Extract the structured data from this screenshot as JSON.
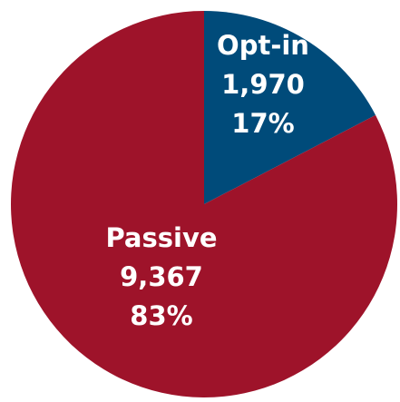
{
  "chart_data": {
    "type": "pie",
    "slices": [
      {
        "label": "Opt-in",
        "value": 1970,
        "value_text": "1,970",
        "percent": 17,
        "percent_text": "17%",
        "color": "#004b7a"
      },
      {
        "label": "Passive",
        "value": 9367,
        "value_text": "9,367",
        "percent": 83,
        "percent_text": "83%",
        "color": "#9e132a"
      }
    ],
    "start_angle": "12 o'clock",
    "direction": "clockwise",
    "legend": "none",
    "data_labels": "inside"
  }
}
